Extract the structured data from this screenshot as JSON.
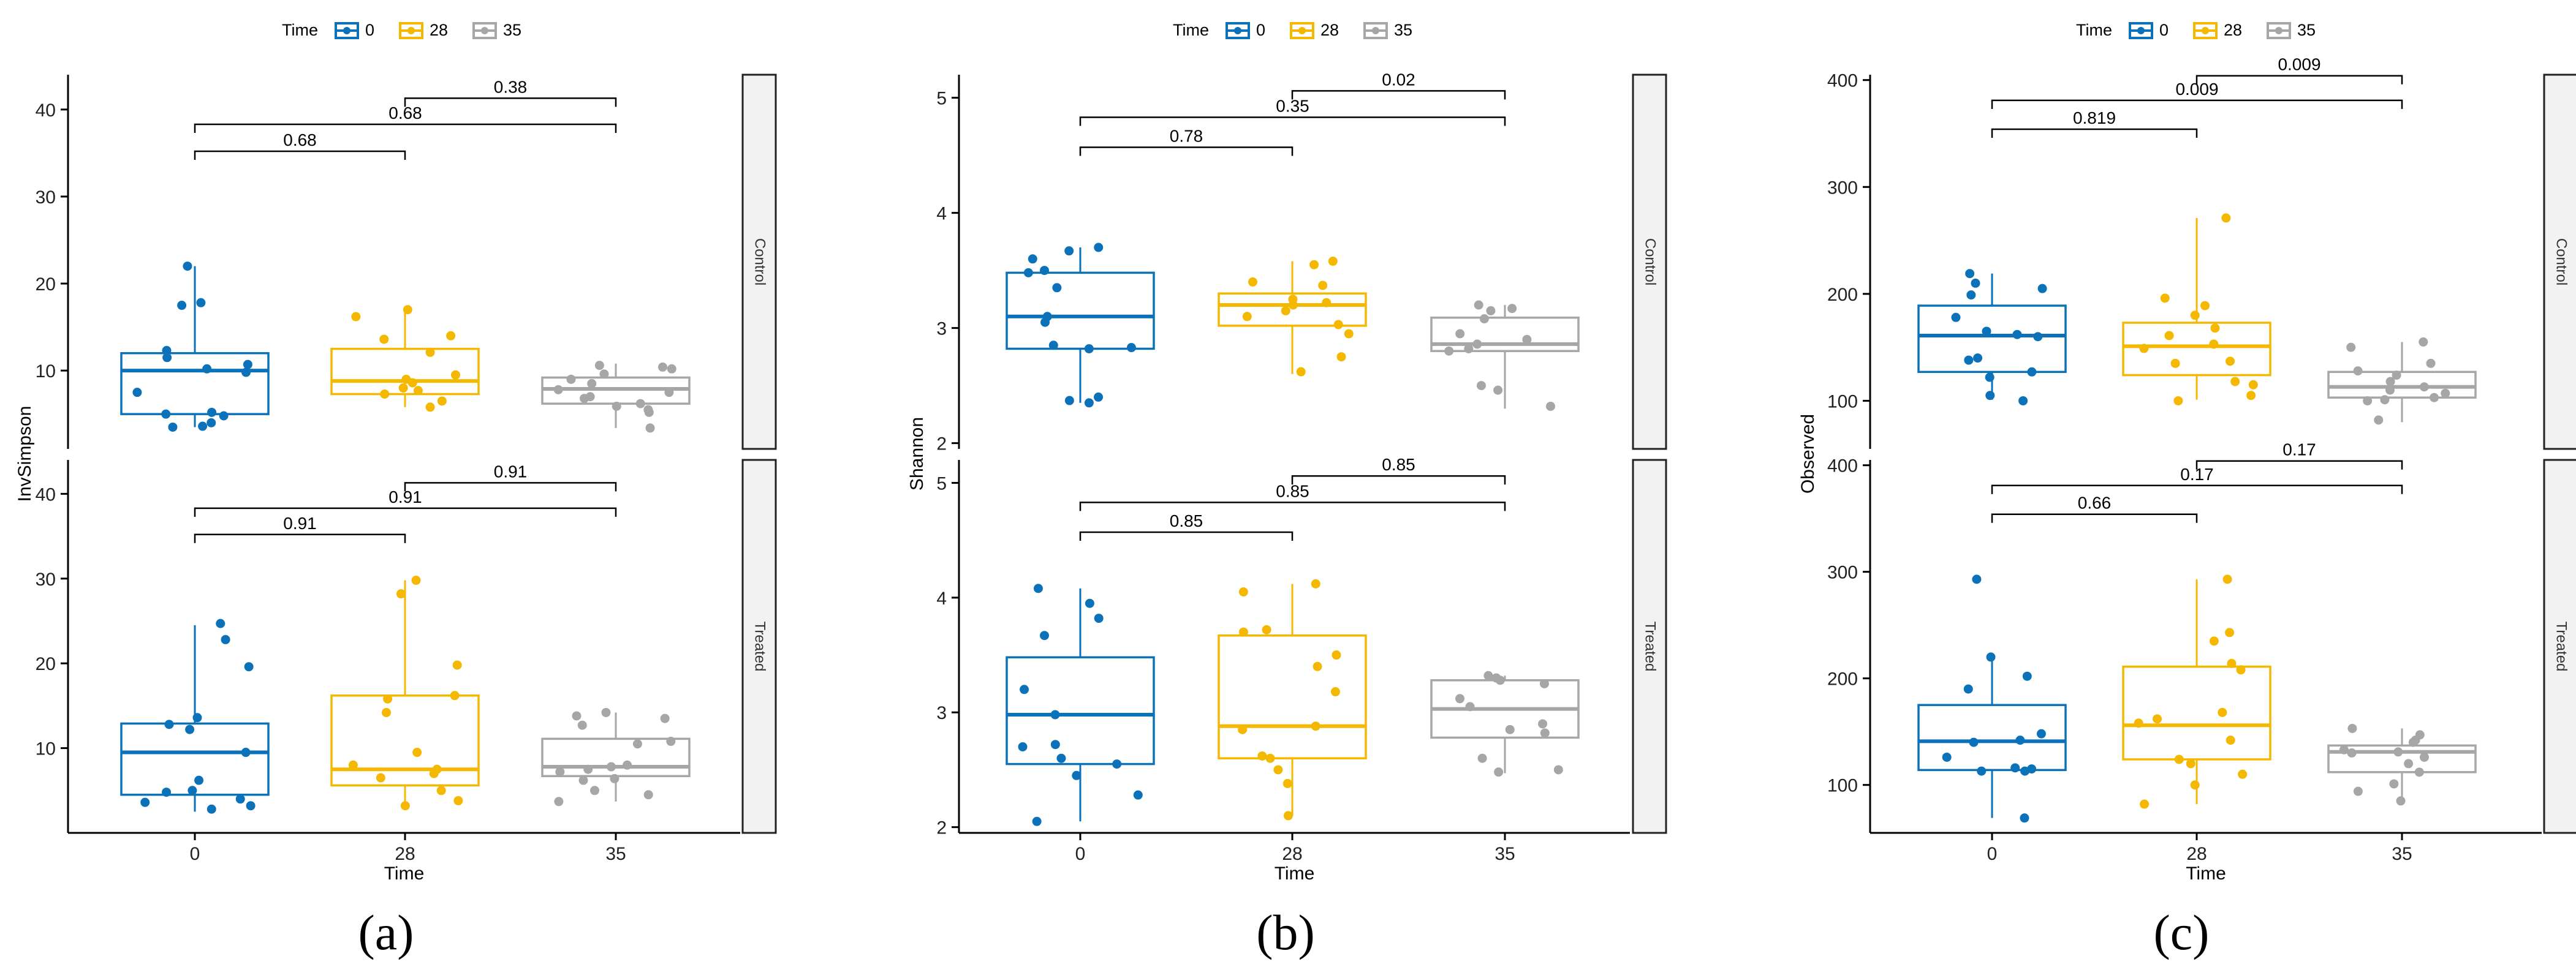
{
  "figure": {
    "panel_labels": [
      "(a)",
      "(b)",
      "(c)"
    ],
    "legend_title": "Time",
    "time_levels": [
      "0",
      "28",
      "35"
    ],
    "colors": {
      "0": "#0B72BA",
      "28": "#F5B800",
      "35": "#A6A6A6"
    },
    "facet_strips": [
      "Control",
      "Treated"
    ],
    "facet_bg": "#F2F2F2"
  },
  "chart_data": [
    {
      "type": "boxplot",
      "title": "(a)",
      "xlabel": "Time",
      "ylabel": "InvSimpson",
      "categories": [
        "0",
        "28",
        "35"
      ],
      "facets": [
        {
          "name": "Control",
          "ylim": [
            1,
            44
          ],
          "yticks": [
            10,
            20,
            30,
            40
          ],
          "boxes": [
            {
              "time": "0",
              "q1": 5,
              "median": 10,
              "q3": 12,
              "lower": 3.5,
              "upper": 22,
              "points": [
                22,
                17.8,
                17.5,
                12.3,
                11.5,
                10.7,
                10.2,
                9.8,
                7.5,
                5.2,
                5.0,
                4.8,
                4.0,
                3.6,
                3.5
              ]
            },
            {
              "time": "28",
              "q1": 7.3,
              "median": 8.8,
              "q3": 12.5,
              "lower": 5.8,
              "upper": 17,
              "points": [
                17,
                16.2,
                14,
                13.6,
                12.1,
                9.5,
                9.0,
                8.6,
                8.0,
                7.7,
                7.3,
                6.5,
                5.8
              ]
            },
            {
              "time": "35",
              "q1": 6.2,
              "median": 7.9,
              "q3": 9.2,
              "lower": 3.4,
              "upper": 10.8,
              "points": [
                10.6,
                10.4,
                10.2,
                9.6,
                9.0,
                8.5,
                7.8,
                7.5,
                7.0,
                6.8,
                6.2,
                5.9,
                5.5,
                5.2,
                3.4
              ]
            }
          ],
          "brackets": [
            {
              "from": "0",
              "to": "28",
              "y": 35.2,
              "label": "0.68"
            },
            {
              "from": "0",
              "to": "35",
              "y": 38.3,
              "label": "0.68"
            },
            {
              "from": "28",
              "to": "35",
              "y": 41.3,
              "label": "0.38"
            }
          ]
        },
        {
          "name": "Treated",
          "ylim": [
            0,
            44
          ],
          "yticks": [
            10,
            20,
            30,
            40
          ],
          "boxes": [
            {
              "time": "0",
              "q1": 4.5,
              "median": 9.5,
              "q3": 12.9,
              "lower": 2.5,
              "upper": 24.5,
              "points": [
                24.7,
                22.8,
                19.6,
                13.6,
                12.8,
                12.2,
                9.5,
                6.2,
                5.0,
                4.8,
                4.0,
                3.6,
                3.2,
                2.8
              ]
            },
            {
              "time": "28",
              "q1": 5.6,
              "median": 7.5,
              "q3": 16.2,
              "lower": 3,
              "upper": 29.8,
              "points": [
                29.8,
                28.2,
                19.8,
                16.2,
                15.8,
                14.2,
                9.5,
                8.0,
                7.5,
                7.0,
                6.5,
                5.0,
                3.8,
                3.2
              ]
            },
            {
              "time": "35",
              "q1": 6.7,
              "median": 7.8,
              "q3": 11.1,
              "lower": 3.7,
              "upper": 14.2,
              "points": [
                14.2,
                13.8,
                13.5,
                12.7,
                10.8,
                10.5,
                8.0,
                7.8,
                7.5,
                7.2,
                6.4,
                6.2,
                5.0,
                4.5,
                3.7
              ]
            }
          ],
          "brackets": [
            {
              "from": "0",
              "to": "28",
              "y": 35.2,
              "label": "0.91"
            },
            {
              "from": "0",
              "to": "35",
              "y": 38.3,
              "label": "0.91"
            },
            {
              "from": "28",
              "to": "35",
              "y": 41.3,
              "label": "0.91"
            }
          ]
        }
      ]
    },
    {
      "type": "boxplot",
      "title": "(b)",
      "xlabel": "Time",
      "ylabel": "Shannon",
      "categories": [
        "0",
        "28",
        "35"
      ],
      "facets": [
        {
          "name": "Control",
          "ylim": [
            1.95,
            5.2
          ],
          "yticks": [
            2,
            3,
            4,
            5
          ],
          "boxes": [
            {
              "time": "0",
              "q1": 2.82,
              "median": 3.1,
              "q3": 3.48,
              "lower": 2.35,
              "upper": 3.7,
              "points": [
                3.7,
                3.67,
                3.6,
                3.5,
                3.48,
                3.35,
                3.1,
                3.05,
                2.85,
                2.83,
                2.82,
                2.4,
                2.37,
                2.35
              ]
            },
            {
              "time": "28",
              "q1": 3.02,
              "median": 3.2,
              "q3": 3.3,
              "lower": 2.6,
              "upper": 3.58,
              "points": [
                3.58,
                3.55,
                3.4,
                3.37,
                3.25,
                3.22,
                3.2,
                3.15,
                3.1,
                3.03,
                2.95,
                2.75,
                2.62
              ]
            },
            {
              "time": "35",
              "q1": 2.8,
              "median": 2.86,
              "q3": 3.09,
              "lower": 2.3,
              "upper": 3.2,
              "points": [
                3.2,
                3.17,
                3.15,
                3.08,
                2.95,
                2.9,
                2.86,
                2.82,
                2.8,
                2.5,
                2.46,
                2.32
              ]
            }
          ],
          "brackets": [
            {
              "from": "0",
              "to": "28",
              "y": 4.57,
              "label": "0.78"
            },
            {
              "from": "0",
              "to": "35",
              "y": 4.83,
              "label": "0.35"
            },
            {
              "from": "28",
              "to": "35",
              "y": 5.06,
              "label": "0.02"
            }
          ]
        },
        {
          "name": "Treated",
          "ylim": [
            1.95,
            5.2
          ],
          "yticks": [
            2,
            3,
            4,
            5
          ],
          "boxes": [
            {
              "time": "0",
              "q1": 2.55,
              "median": 2.98,
              "q3": 3.48,
              "lower": 2.05,
              "upper": 4.08,
              "points": [
                4.08,
                3.95,
                3.82,
                3.67,
                3.2,
                2.98,
                2.72,
                2.7,
                2.6,
                2.55,
                2.45,
                2.28,
                2.05
              ]
            },
            {
              "time": "28",
              "q1": 2.6,
              "median": 2.88,
              "q3": 3.67,
              "lower": 2.1,
              "upper": 4.12,
              "points": [
                4.12,
                4.05,
                3.72,
                3.7,
                3.5,
                3.4,
                3.18,
                2.88,
                2.85,
                2.62,
                2.6,
                2.5,
                2.38,
                2.1
              ]
            },
            {
              "time": "35",
              "q1": 2.78,
              "median": 3.03,
              "q3": 3.28,
              "lower": 2.47,
              "upper": 3.32,
              "points": [
                3.32,
                3.3,
                3.28,
                3.25,
                3.12,
                3.05,
                2.9,
                2.85,
                2.82,
                2.6,
                2.5,
                2.48
              ]
            }
          ],
          "brackets": [
            {
              "from": "0",
              "to": "28",
              "y": 4.57,
              "label": "0.85"
            },
            {
              "from": "0",
              "to": "35",
              "y": 4.83,
              "label": "0.85"
            },
            {
              "from": "28",
              "to": "35",
              "y": 5.06,
              "label": "0.85"
            }
          ]
        }
      ]
    },
    {
      "type": "boxplot",
      "title": "(c)",
      "xlabel": "Time",
      "ylabel": "Observed",
      "categories": [
        "0",
        "28",
        "35"
      ],
      "facets": [
        {
          "name": "Control",
          "ylim": [
            55,
            405
          ],
          "yticks": [
            100,
            200,
            300,
            400
          ],
          "boxes": [
            {
              "time": "0",
              "q1": 127,
              "median": 161,
              "q3": 189,
              "lower": 101,
              "upper": 219,
              "points": [
                219,
                210,
                205,
                199,
                178,
                165,
                162,
                160,
                140,
                138,
                127,
                122,
                105,
                100
              ]
            },
            {
              "time": "28",
              "q1": 124,
              "median": 151,
              "q3": 173,
              "lower": 101,
              "upper": 271,
              "points": [
                271,
                196,
                189,
                180,
                168,
                161,
                153,
                149,
                137,
                135,
                118,
                115,
                105,
                100
              ]
            },
            {
              "time": "35",
              "q1": 103,
              "median": 113,
              "q3": 127,
              "lower": 80,
              "upper": 155,
              "points": [
                155,
                150,
                135,
                128,
                124,
                118,
                113,
                110,
                107,
                103,
                101,
                100,
                82
              ]
            }
          ],
          "brackets": [
            {
              "from": "0",
              "to": "28",
              "y": 354,
              "label": "0.819"
            },
            {
              "from": "0",
              "to": "35",
              "y": 381,
              "label": "0.009"
            },
            {
              "from": "28",
              "to": "35",
              "y": 404,
              "label": "0.009"
            }
          ]
        },
        {
          "name": "Treated",
          "ylim": [
            55,
            405
          ],
          "yticks": [
            100,
            200,
            300,
            400
          ],
          "boxes": [
            {
              "time": "0",
              "q1": 114,
              "median": 141,
              "q3": 175,
              "lower": 69,
              "upper": 220,
              "points": [
                293,
                220,
                202,
                190,
                148,
                142,
                140,
                126,
                116,
                115,
                113,
                113,
                69
              ]
            },
            {
              "time": "28",
              "q1": 124,
              "median": 156,
              "q3": 211,
              "lower": 82,
              "upper": 293,
              "points": [
                293,
                243,
                235,
                214,
                208,
                168,
                162,
                158,
                142,
                124,
                120,
                110,
                100,
                82
              ]
            },
            {
              "time": "35",
              "q1": 112,
              "median": 131,
              "q3": 137,
              "lower": 85,
              "upper": 153,
              "points": [
                153,
                147,
                142,
                140,
                133,
                131,
                130,
                126,
                120,
                112,
                101,
                94,
                85
              ]
            }
          ],
          "brackets": [
            {
              "from": "0",
              "to": "28",
              "y": 354,
              "label": "0.66"
            },
            {
              "from": "0",
              "to": "35",
              "y": 381,
              "label": "0.17"
            },
            {
              "from": "28",
              "to": "35",
              "y": 404,
              "label": "0.17"
            }
          ]
        }
      ]
    }
  ]
}
